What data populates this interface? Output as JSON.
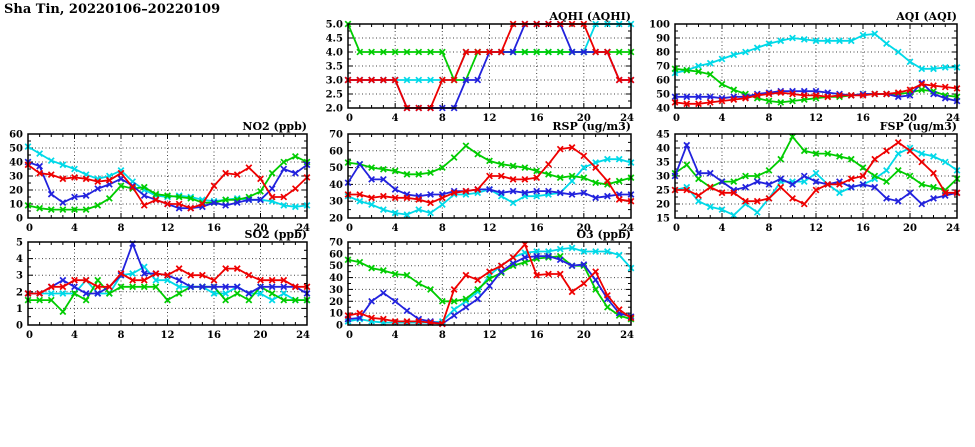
{
  "page_title": "Sha Tin, 20220106–20220109",
  "chart_data": [
    {
      "id": "aqhi",
      "type": "line",
      "title": "AQHI (AQHI)",
      "x_range": [
        0,
        24
      ],
      "x_ticks": [
        0,
        4,
        8,
        12,
        16,
        20,
        24
      ],
      "x_tick_labels": [
        "0",
        "4",
        "8",
        "12",
        "16",
        "20",
        "24"
      ],
      "y_range": [
        2,
        5
      ],
      "y_ticks": [
        2,
        2.5,
        3,
        3.5,
        4,
        4.5,
        5
      ],
      "y_tick_labels": [
        "2.0",
        "2.5",
        "3.0",
        "3.5",
        "4.0",
        "4.5",
        "5.0"
      ],
      "grid": true,
      "legend": "none",
      "series": [
        {
          "name": "cyan",
          "color": "#00d9e8",
          "values": [
            3,
            3,
            3,
            3,
            3,
            3,
            3,
            3,
            3,
            3,
            4,
            4,
            4,
            4,
            4,
            4,
            4,
            4,
            4,
            4,
            4,
            5,
            5,
            5,
            5
          ]
        },
        {
          "name": "green",
          "color": "#00cc00",
          "values": [
            5,
            4,
            4,
            4,
            4,
            4,
            4,
            4,
            4,
            3,
            3,
            4,
            4,
            4,
            4,
            4,
            4,
            4,
            4,
            4,
            4,
            4,
            4,
            4,
            4
          ]
        },
        {
          "name": "blue",
          "color": "#2222dd",
          "values": [
            3,
            3,
            3,
            3,
            3,
            2,
            2,
            2,
            2,
            2,
            3,
            3,
            4,
            4,
            4,
            5,
            5,
            5,
            5,
            4,
            4,
            4,
            4,
            3,
            3
          ]
        },
        {
          "name": "red",
          "color": "#ee0000",
          "values": [
            3,
            3,
            3,
            3,
            3,
            2,
            2,
            2,
            3,
            3,
            4,
            4,
            4,
            4,
            5,
            5,
            5,
            5,
            5,
            5,
            5,
            4,
            4,
            3,
            3
          ]
        }
      ]
    },
    {
      "id": "aqi",
      "type": "line",
      "title": "AQI (AQI)",
      "x_range": [
        0,
        24
      ],
      "x_ticks": [
        0,
        4,
        8,
        12,
        16,
        20,
        24
      ],
      "x_tick_labels": [
        "0",
        "4",
        "8",
        "12",
        "16",
        "20",
        "24"
      ],
      "y_range": [
        40,
        100
      ],
      "y_ticks": [
        40,
        50,
        60,
        70,
        80,
        90,
        100
      ],
      "y_tick_labels": [
        "40",
        "50",
        "60",
        "70",
        "80",
        "90",
        "100"
      ],
      "grid": true,
      "legend": "none",
      "series": [
        {
          "name": "cyan",
          "color": "#00d9e8",
          "values": [
            65,
            67,
            70,
            72,
            75,
            78,
            80,
            83,
            86,
            88,
            90,
            89,
            88,
            88,
            88,
            88,
            92,
            93,
            86,
            80,
            73,
            68,
            68,
            69,
            69
          ]
        },
        {
          "name": "green",
          "color": "#00cc00",
          "values": [
            68,
            67,
            66,
            64,
            57,
            53,
            50,
            47,
            45,
            44,
            45,
            46,
            47,
            48,
            48,
            49,
            50,
            50,
            50,
            50,
            51,
            53,
            52,
            49,
            48
          ]
        },
        {
          "name": "blue",
          "color": "#2222dd",
          "values": [
            48,
            48,
            48,
            48,
            47,
            48,
            48,
            50,
            51,
            52,
            52,
            52,
            52,
            51,
            50,
            49,
            50,
            50,
            50,
            48,
            49,
            58,
            50,
            47,
            45
          ]
        },
        {
          "name": "red",
          "color": "#ee0000",
          "values": [
            44,
            43,
            43,
            44,
            45,
            46,
            47,
            49,
            50,
            51,
            50,
            49,
            49,
            48,
            49,
            49,
            49,
            50,
            50,
            51,
            53,
            57,
            56,
            55,
            54
          ]
        }
      ]
    },
    {
      "id": "no2",
      "type": "line",
      "title": "NO2 (ppb)",
      "x_range": [
        0,
        24
      ],
      "x_ticks": [
        0,
        4,
        8,
        12,
        16,
        20,
        24
      ],
      "x_tick_labels": [
        "0",
        "4",
        "8",
        "12",
        "16",
        "20",
        "24"
      ],
      "y_range": [
        0,
        60
      ],
      "y_ticks": [
        0,
        10,
        20,
        30,
        40,
        50,
        60
      ],
      "y_tick_labels": [
        "0",
        "10",
        "20",
        "30",
        "40",
        "50",
        "60"
      ],
      "grid": true,
      "legend": "none",
      "series": [
        {
          "name": "cyan",
          "color": "#00d9e8",
          "values": [
            51,
            46,
            41,
            38,
            35,
            31,
            28,
            30,
            34,
            26,
            20,
            16,
            15,
            16,
            15,
            13,
            12,
            13,
            14,
            13,
            13,
            12,
            9,
            8,
            9
          ]
        },
        {
          "name": "green",
          "color": "#00cc00",
          "values": [
            9,
            7,
            6,
            6,
            6,
            6,
            9,
            14,
            23,
            21,
            22,
            17,
            16,
            15,
            14,
            11,
            11,
            13,
            13,
            15,
            19,
            32,
            40,
            44,
            40
          ]
        },
        {
          "name": "blue",
          "color": "#2222dd",
          "values": [
            40,
            37,
            17,
            11,
            15,
            16,
            21,
            24,
            28,
            23,
            16,
            13,
            10,
            7,
            7,
            8,
            11,
            9,
            11,
            13,
            13,
            21,
            35,
            32,
            38
          ]
        },
        {
          "name": "red",
          "color": "#ee0000",
          "values": [
            38,
            32,
            31,
            28,
            29,
            28,
            26,
            27,
            32,
            22,
            9,
            13,
            10,
            10,
            7,
            10,
            23,
            32,
            31,
            36,
            28,
            15,
            15,
            21,
            29
          ]
        }
      ]
    },
    {
      "id": "rsp",
      "type": "line",
      "title": "RSP (ug/m3)",
      "x_range": [
        0,
        24
      ],
      "x_ticks": [
        0,
        4,
        8,
        12,
        16,
        20,
        24
      ],
      "x_tick_labels": [
        "0",
        "4",
        "8",
        "12",
        "16",
        "20",
        "24"
      ],
      "y_range": [
        20,
        70
      ],
      "y_ticks": [
        20,
        30,
        40,
        50,
        60,
        70
      ],
      "y_tick_labels": [
        "20",
        "30",
        "40",
        "50",
        "60",
        "70"
      ],
      "grid": true,
      "legend": "none",
      "series": [
        {
          "name": "cyan",
          "color": "#00d9e8",
          "values": [
            33,
            30,
            28,
            25,
            23,
            22,
            25,
            23,
            28,
            34,
            34,
            35,
            37,
            33,
            29,
            33,
            33,
            34,
            35,
            42,
            50,
            53,
            55,
            55,
            53
          ]
        },
        {
          "name": "green",
          "color": "#00cc00",
          "values": [
            53,
            52,
            50,
            49,
            48,
            46,
            46,
            47,
            50,
            56,
            63,
            58,
            54,
            52,
            51,
            50,
            48,
            46,
            44,
            45,
            44,
            41,
            40,
            42,
            44
          ]
        },
        {
          "name": "blue",
          "color": "#2222dd",
          "values": [
            41,
            52,
            43,
            43,
            37,
            34,
            33,
            34,
            34,
            36,
            36,
            37,
            37,
            35,
            36,
            35,
            36,
            36,
            35,
            34,
            35,
            32,
            33,
            34,
            34
          ]
        },
        {
          "name": "red",
          "color": "#ee0000",
          "values": [
            34,
            34,
            32,
            33,
            32,
            32,
            31,
            29,
            32,
            35,
            36,
            37,
            45,
            45,
            43,
            43,
            44,
            52,
            61,
            62,
            57,
            50,
            42,
            31,
            30
          ]
        }
      ]
    },
    {
      "id": "fsp",
      "type": "line",
      "title": "FSP (ug/m3)",
      "x_range": [
        0,
        24
      ],
      "x_ticks": [
        0,
        4,
        8,
        12,
        16,
        20,
        24
      ],
      "x_tick_labels": [
        "0",
        "4",
        "8",
        "12",
        "16",
        "20",
        "24"
      ],
      "y_range": [
        15,
        45
      ],
      "y_ticks": [
        15,
        20,
        25,
        30,
        35,
        40,
        45
      ],
      "y_tick_labels": [
        "15",
        "20",
        "25",
        "30",
        "35",
        "40",
        "45"
      ],
      "grid": true,
      "legend": "none",
      "series": [
        {
          "name": "cyan",
          "color": "#00d9e8",
          "values": [
            25,
            26,
            21,
            19,
            18,
            16,
            20,
            17,
            22,
            28,
            28,
            28,
            31,
            27,
            24,
            26,
            27,
            29,
            32,
            38,
            40,
            38,
            37,
            35,
            32
          ]
        },
        {
          "name": "green",
          "color": "#00cc00",
          "values": [
            31,
            34,
            29,
            26,
            28,
            28,
            30,
            30,
            32,
            36,
            44,
            39,
            38,
            38,
            37,
            36,
            33,
            30,
            28,
            32,
            30,
            27,
            26,
            25,
            29
          ]
        },
        {
          "name": "blue",
          "color": "#2222dd",
          "values": [
            30,
            41,
            31,
            31,
            28,
            25,
            26,
            28,
            27,
            29,
            27,
            30,
            28,
            27,
            28,
            26,
            27,
            26,
            22,
            21,
            24,
            20,
            22,
            23,
            24
          ]
        },
        {
          "name": "red",
          "color": "#ee0000",
          "values": [
            25,
            25,
            23,
            26,
            24,
            24,
            21,
            21,
            22,
            26,
            22,
            20,
            25,
            27,
            27,
            29,
            30,
            36,
            39,
            42,
            39,
            35,
            31,
            24,
            24
          ]
        }
      ]
    },
    {
      "id": "so2",
      "type": "line",
      "title": "SO2 (ppb)",
      "x_range": [
        0,
        24
      ],
      "x_ticks": [
        0,
        4,
        8,
        12,
        16,
        20,
        24
      ],
      "x_tick_labels": [
        "0",
        "4",
        "8",
        "12",
        "16",
        "20",
        "24"
      ],
      "y_range": [
        0,
        5
      ],
      "y_ticks": [
        0,
        1,
        2,
        3,
        4,
        5
      ],
      "y_tick_labels": [
        "0",
        "1",
        "2",
        "3",
        "4",
        "5"
      ],
      "grid": true,
      "legend": "none",
      "series": [
        {
          "name": "cyan",
          "color": "#00d9e8",
          "values": [
            1.9,
            1.9,
            1.9,
            1.9,
            1.9,
            2.7,
            1.9,
            1.9,
            3.0,
            3.1,
            3.5,
            2.7,
            2.7,
            2.3,
            2.3,
            2.3,
            1.9,
            1.9,
            2.3,
            1.9,
            1.9,
            1.5,
            1.9,
            1.5,
            1.5
          ]
        },
        {
          "name": "green",
          "color": "#00cc00",
          "values": [
            1.5,
            1.5,
            1.5,
            0.8,
            1.9,
            1.5,
            2.7,
            1.9,
            2.3,
            2.3,
            2.3,
            2.3,
            1.5,
            1.9,
            2.3,
            2.3,
            2.3,
            1.5,
            1.9,
            1.5,
            2.3,
            1.9,
            1.5,
            1.5,
            1.5
          ]
        },
        {
          "name": "blue",
          "color": "#2222dd",
          "values": [
            1.9,
            1.9,
            2.3,
            2.7,
            2.3,
            1.9,
            1.9,
            2.3,
            3.0,
            4.9,
            3.1,
            3.1,
            3.0,
            2.7,
            2.3,
            2.3,
            2.3,
            2.3,
            2.3,
            1.9,
            2.3,
            2.3,
            2.3,
            2.3,
            1.9
          ]
        },
        {
          "name": "red",
          "color": "#ee0000",
          "values": [
            1.9,
            1.9,
            2.3,
            2.3,
            2.7,
            2.7,
            2.3,
            2.3,
            3.1,
            2.7,
            2.7,
            3.1,
            3.0,
            3.4,
            3.0,
            3.0,
            2.7,
            3.4,
            3.4,
            3.0,
            2.7,
            2.7,
            2.7,
            2.3,
            2.3
          ]
        }
      ]
    },
    {
      "id": "o3",
      "type": "line",
      "title": "O3 (ppb)",
      "x_range": [
        0,
        24
      ],
      "x_ticks": [
        0,
        4,
        8,
        12,
        16,
        20,
        24
      ],
      "x_tick_labels": [
        "0",
        "4",
        "8",
        "12",
        "16",
        "20",
        "24"
      ],
      "y_range": [
        0,
        70
      ],
      "y_ticks": [
        0,
        10,
        20,
        30,
        40,
        50,
        60,
        70
      ],
      "y_tick_labels": [
        "0",
        "10",
        "20",
        "30",
        "40",
        "50",
        "60",
        "70"
      ],
      "grid": true,
      "legend": "none",
      "series": [
        {
          "name": "cyan",
          "color": "#00d9e8",
          "values": [
            3,
            5,
            3,
            2,
            2,
            2,
            2,
            2,
            3,
            13,
            20,
            28,
            42,
            50,
            57,
            61,
            62,
            62,
            64,
            65,
            62,
            62,
            62,
            59,
            48
          ]
        },
        {
          "name": "green",
          "color": "#00cc00",
          "values": [
            55,
            53,
            48,
            46,
            43,
            42,
            35,
            30,
            20,
            20,
            22,
            30,
            39,
            44,
            50,
            53,
            56,
            57,
            58,
            50,
            50,
            30,
            15,
            8,
            5
          ]
        },
        {
          "name": "blue",
          "color": "#2222dd",
          "values": [
            5,
            6,
            20,
            27,
            20,
            12,
            5,
            3,
            1,
            8,
            15,
            22,
            33,
            45,
            52,
            57,
            58,
            58,
            55,
            50,
            51,
            38,
            22,
            10,
            7
          ]
        },
        {
          "name": "red",
          "color": "#ee0000",
          "values": [
            8,
            10,
            6,
            5,
            3,
            3,
            3,
            2,
            1,
            30,
            42,
            38,
            45,
            50,
            57,
            68,
            42,
            43,
            43,
            28,
            35,
            45,
            25,
            13,
            6
          ]
        }
      ]
    }
  ]
}
